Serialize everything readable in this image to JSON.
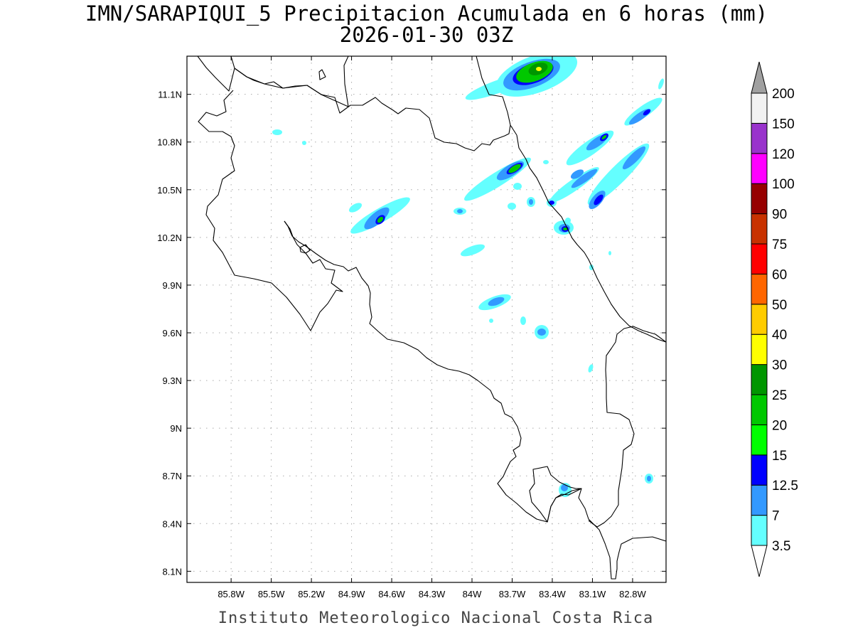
{
  "header": {
    "title": "IMN/SARAPIQUI_5 Precipitacion Acumulada en 6 horas (mm)",
    "subtitle": "2026-01-30 03Z"
  },
  "footer": {
    "credit": "Instituto Meteorologico Nacional Costa Rica"
  },
  "map": {
    "region": "Costa Rica",
    "lon_range": [
      -86.13,
      -82.55
    ],
    "lat_range": [
      8.03,
      11.34
    ],
    "x_ticks": [
      "85.8W",
      "85.5W",
      "85.2W",
      "84.9W",
      "84.6W",
      "84.3W",
      "84W",
      "83.7W",
      "83.4W",
      "83.1W",
      "82.8W"
    ],
    "y_ticks": [
      "11.1N",
      "10.8N",
      "10.5N",
      "10.2N",
      "9.9N",
      "9.6N",
      "9.3N",
      "9N",
      "8.7N",
      "8.4N",
      "8.1N"
    ],
    "grid": true,
    "variable": "Precipitacion acumulada 6 horas",
    "units": "mm"
  },
  "legend": {
    "thresholds": [
      "3.5",
      "7",
      "12.5",
      "15",
      "20",
      "25",
      "30",
      "40",
      "50",
      "60",
      "75",
      "90",
      "100",
      "120",
      "150",
      "200"
    ],
    "colors": [
      "#64ffff",
      "#3399ff",
      "#0000ff",
      "#00ff00",
      "#00c800",
      "#009600",
      "#ffff00",
      "#ffcc00",
      "#ff6600",
      "#ff0000",
      "#c83200",
      "#960000",
      "#ff00ff",
      "#9933cc",
      "#f2f2f2"
    ],
    "over_color": "#a0a0a0",
    "under_color": "#ffffff"
  }
}
